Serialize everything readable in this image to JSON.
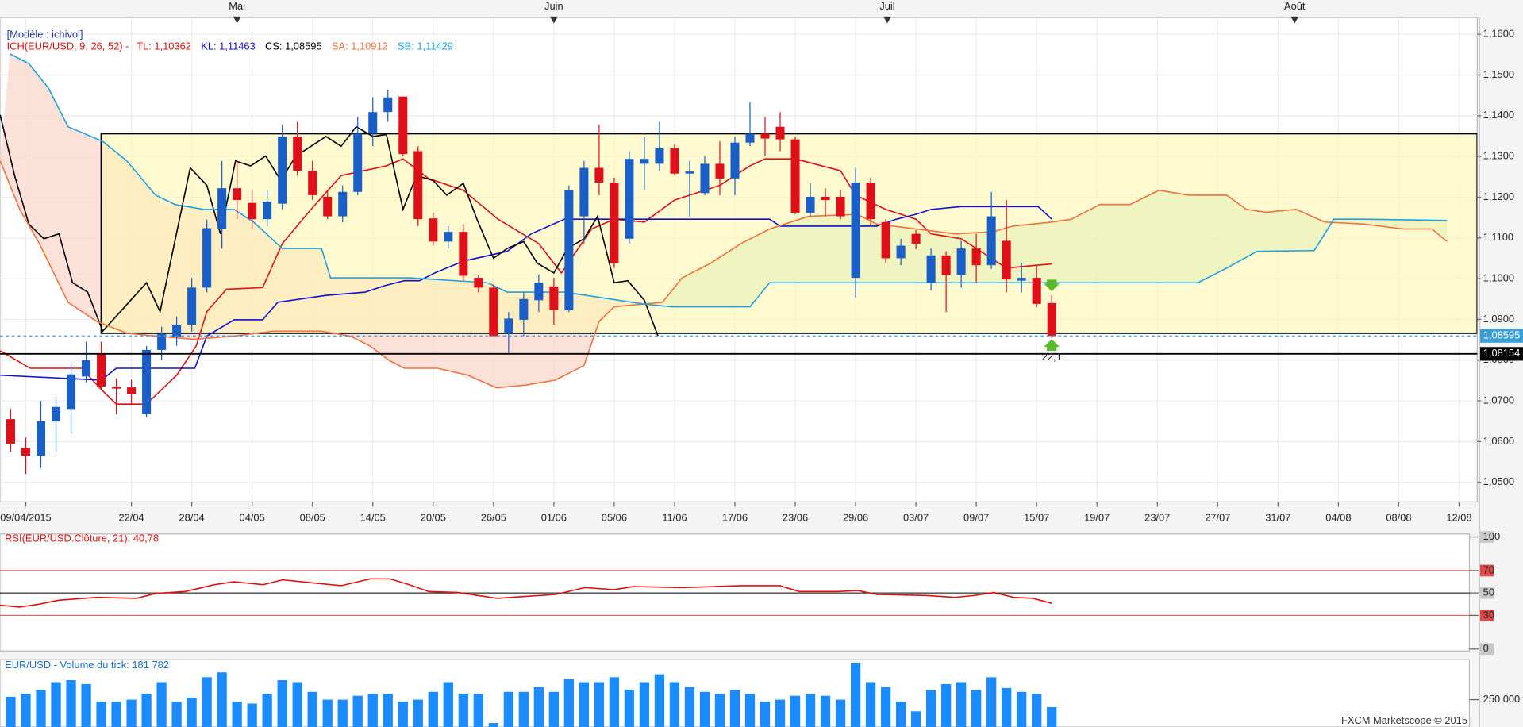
{
  "chart_data": [
    {
      "type": "candlestick",
      "model_label": "[Modèle : ichivol]",
      "indicator_label": "ICH(EUR/USD, 9, 26, 52) -",
      "up_color": "#1a5fc8",
      "down_color": "#e0101a",
      "open": [
        1.0655,
        1.0585,
        1.0565,
        1.065,
        1.068,
        1.076,
        1.0815,
        1.0735,
        1.0733,
        1.0668,
        1.0825,
        1.0858,
        1.0887,
        1.0978,
        1.1122,
        1.1222,
        1.1186,
        1.1146,
        1.1184,
        1.1349,
        1.1265,
        1.1201,
        1.1153,
        1.1213,
        1.1356,
        1.1409,
        1.1447,
        1.1313,
        1.1148,
        1.1091,
        1.1115,
        1.1002,
        1.0978,
        1.0866,
        1.0899,
        1.0947,
        1.0981,
        1.0923,
        1.1153,
        1.1272,
        1.1236,
        1.1098,
        1.1282,
        1.1282,
        1.132,
        1.1258,
        1.121,
        1.1282,
        1.1246,
        1.1334,
        1.1356,
        1.1373,
        1.1342,
        1.1162,
        1.1201,
        1.1201,
        1.1002,
        1.1236,
        1.1139,
        1.105,
        1.111,
        1.099,
        1.1057,
        1.1009,
        1.1074,
        1.1033,
        1.1093,
        1.0995,
        1.1002,
        1.094
      ],
      "high": [
        1.068,
        1.061,
        1.07,
        1.071,
        1.079,
        1.0845,
        1.0845,
        1.0755,
        1.0752,
        1.0835,
        1.0882,
        1.0907,
        1.1002,
        1.1145,
        1.1289,
        1.1289,
        1.1217,
        1.1217,
        1.1378,
        1.1385,
        1.1289,
        1.1217,
        1.1229,
        1.1397,
        1.1445,
        1.1464,
        1.1447,
        1.1325,
        1.1162,
        1.1129,
        1.1134,
        1.101,
        1.0986,
        1.0918,
        1.0966,
        1.101,
        1.1002,
        1.1229,
        1.1289,
        1.1378,
        1.1248,
        1.1313,
        1.1349,
        1.1385,
        1.133,
        1.1289,
        1.1301,
        1.1337,
        1.1349,
        1.1433,
        1.1397,
        1.1409,
        1.1349,
        1.1234,
        1.1222,
        1.1217,
        1.1272,
        1.1248,
        1.1146,
        1.1098,
        1.1119,
        1.1074,
        1.1067,
        1.1093,
        1.111,
        1.1213,
        1.1193,
        1.1038,
        1.1033,
        1.0959
      ],
      "low": [
        1.0575,
        1.052,
        1.0535,
        1.0575,
        1.062,
        1.0745,
        1.0728,
        1.0668,
        1.0692,
        1.066,
        1.08,
        1.0835,
        1.087,
        1.0966,
        1.1074,
        1.1146,
        1.1122,
        1.1129,
        1.117,
        1.1253,
        1.1193,
        1.1146,
        1.1138,
        1.1205,
        1.1325,
        1.1385,
        1.1301,
        1.1129,
        1.1081,
        1.1074,
        1.0995,
        1.0966,
        1.0859,
        1.0818,
        1.0859,
        1.0918,
        1.0887,
        1.0918,
        1.1086,
        1.1205,
        1.1026,
        1.1086,
        1.1217,
        1.1265,
        1.1253,
        1.1153,
        1.1205,
        1.1205,
        1.1205,
        1.1325,
        1.1301,
        1.1313,
        1.1158,
        1.1153,
        1.1153,
        1.1146,
        1.0954,
        1.1129,
        1.1038,
        1.1033,
        1.1072,
        1.0971,
        1.0918,
        1.0978,
        1.099,
        1.1024,
        1.0966,
        1.0966,
        1.093,
        1.0854
      ],
      "close": [
        1.0595,
        1.0565,
        1.065,
        1.0685,
        1.0765,
        1.08,
        1.0735,
        1.073,
        1.0717,
        1.0825,
        1.0865,
        1.0887,
        1.0978,
        1.1124,
        1.1222,
        1.1193,
        1.1146,
        1.1189,
        1.1349,
        1.1265,
        1.1205,
        1.1153,
        1.1213,
        1.1356,
        1.1409,
        1.1445,
        1.1306,
        1.1146,
        1.1091,
        1.1115,
        1.1007,
        1.0978,
        1.0859,
        1.0902,
        1.095,
        1.099,
        1.0923,
        1.1217,
        1.1272,
        1.1236,
        1.1038,
        1.1294,
        1.1294,
        1.132,
        1.1258,
        1.1263,
        1.1282,
        1.1246,
        1.1334,
        1.1356,
        1.1344,
        1.1342,
        1.1162,
        1.1201,
        1.1193,
        1.1153,
        1.1236,
        1.1146,
        1.105,
        1.1081,
        1.1086,
        1.1057,
        1.1009,
        1.1074,
        1.1033,
        1.1153,
        1.0998,
        1.1002,
        1.0938,
        1.08595
      ],
      "series": [
        {
          "name": "TL: 1,10362",
          "color": "#e01010",
          "x": [
            -0.7,
            1.3,
            4.7,
            6,
            7,
            9,
            11,
            12.3,
            13,
            14.3,
            16.7,
            18,
            19.9,
            21.9,
            24.9,
            26,
            27.7,
            30,
            32.3,
            35,
            36.5,
            38.5,
            40,
            42,
            44,
            47,
            49,
            50,
            52,
            55,
            56,
            58,
            60,
            61,
            63,
            64,
            66,
            68,
            69
          ],
          "values": [
            1.0823,
            1.078,
            1.078,
            1.0728,
            1.0692,
            1.0692,
            1.0763,
            1.0835,
            1.0919,
            1.0974,
            1.0978,
            1.1086,
            1.117,
            1.1253,
            1.1277,
            1.1294,
            1.1246,
            1.1217,
            1.1146,
            1.1086,
            1.1014,
            1.1122,
            1.1146,
            1.1139,
            1.1193,
            1.1229,
            1.1277,
            1.1294,
            1.1294,
            1.1265,
            1.1205,
            1.117,
            1.1146,
            1.111,
            1.1098,
            1.1074,
            1.1026,
            1.1033,
            1.10362
          ]
        },
        {
          "name": "KL: 1,11463",
          "color": "#1010d0",
          "x": [
            -0.7,
            6,
            7,
            12.2,
            13,
            14.8,
            16.7,
            17.7,
            20.9,
            23.5,
            24.8,
            26.1,
            27.1,
            28.1,
            30,
            32.9,
            34.5,
            36.7,
            50.3,
            51,
            57.4,
            58.7,
            60,
            61,
            63,
            68.1,
            69
          ],
          "values": [
            1.0763,
            1.0751,
            1.078,
            1.078,
            1.0859,
            1.0899,
            1.0899,
            1.0942,
            1.0959,
            1.0967,
            1.0983,
            1.0995,
            1.0995,
            1.1014,
            1.1043,
            1.1067,
            1.111,
            1.1146,
            1.1146,
            1.1129,
            1.1129,
            1.1146,
            1.1158,
            1.117,
            1.1177,
            1.1177,
            1.11463
          ]
        },
        {
          "name": "CS: 1,08595",
          "color": "#000000",
          "x": [
            -0.7,
            0.26,
            1.2,
            2.2,
            3.2,
            4.1,
            5.1,
            6.1,
            9,
            9.9,
            11.9,
            13,
            13.9,
            14.9,
            15.9,
            16.9,
            17.9,
            18.9,
            19.9,
            20.9,
            21.9,
            22.9,
            24,
            24.9,
            26,
            26.9,
            28,
            28.9,
            30,
            30.9,
            32,
            32.9,
            34,
            34.9,
            36,
            36.9,
            38,
            38.9,
            40,
            40.9,
            42,
            42.9
          ],
          "values": [
            1.1402,
            1.1253,
            1.1134,
            1.1098,
            1.111,
            1.099,
            1.0967,
            1.0871,
            1.099,
            1.0919,
            1.1272,
            1.1229,
            1.111,
            1.1289,
            1.1277,
            1.1301,
            1.1241,
            1.1301,
            1.1325,
            1.1349,
            1.1325,
            1.1373,
            1.1349,
            1.1354,
            1.117,
            1.1253,
            1.1241,
            1.1205,
            1.1234,
            1.1146,
            1.105,
            1.1074,
            1.1091,
            1.1038,
            1.1014,
            1.1074,
            1.1098,
            1.1153,
            1.099,
            1.0995,
            1.0947,
            1.08595
          ]
        },
        {
          "name": "SA: 1,10912",
          "color": "#f07040",
          "x": [
            -0.7,
            0.6,
            1.9,
            3.8,
            5.7,
            7.7,
            9.6,
            12.2,
            14.8,
            17.4,
            20.6,
            22.5,
            23.8,
            25.1,
            26.1,
            28.3,
            30.3,
            32.2,
            34.2,
            36.1,
            38,
            39,
            40,
            43.2,
            44.5,
            46.4,
            48.4,
            50.3,
            52.9,
            56.1,
            57.4,
            60,
            62.6,
            65.1,
            66.4,
            69,
            70.3,
            72.2,
            74.2,
            76.1,
            78.1,
            80.6,
            81.9,
            83.2,
            85.2,
            87.1,
            89.7,
            92.3,
            94.2,
            95.2
          ],
          "values": [
            1.1289,
            1.117,
            1.1086,
            1.0942,
            1.0895,
            1.0866,
            1.0859,
            1.0851,
            1.0859,
            1.0871,
            1.0871,
            1.0859,
            1.0835,
            1.0799,
            1.078,
            1.078,
            1.0763,
            1.0732,
            1.0739,
            1.0751,
            1.0787,
            1.0895,
            1.0931,
            1.0942,
            1.1002,
            1.1038,
            1.1086,
            1.1122,
            1.1153,
            1.1158,
            1.1134,
            1.1122,
            1.111,
            1.1115,
            1.1129,
            1.1139,
            1.1146,
            1.1182,
            1.1182,
            1.1217,
            1.1205,
            1.1205,
            1.117,
            1.1163,
            1.117,
            1.1139,
            1.1134,
            1.1122,
            1.1122,
            1.10912
          ]
        },
        {
          "name": "SB: 1,11429",
          "color": "#20a0e0",
          "x": [
            -0.06,
            1.2,
            2.5,
            3.8,
            6.1,
            7.7,
            9.6,
            10.9,
            12.8,
            14.8,
            16.1,
            18,
            20.6,
            21.2,
            26.4,
            31.6,
            32.9,
            36.7,
            41.9,
            43.8,
            49,
            50.3,
            58.7,
            70.3,
            78.7,
            80.6,
            82.6,
            86.4,
            87.7,
            89.7,
            95.2
          ],
          "values": [
            1.1552,
            1.1528,
            1.1468,
            1.1373,
            1.1337,
            1.1289,
            1.1205,
            1.1182,
            1.117,
            1.117,
            1.1139,
            1.1074,
            1.1074,
            1.1002,
            1.1002,
            1.099,
            1.0967,
            1.0967,
            1.0938,
            1.0931,
            1.0931,
            1.099,
            1.099,
            1.099,
            1.099,
            1.1026,
            1.1067,
            1.1069,
            1.1146,
            1.1146,
            1.11429
          ]
        }
      ],
      "box": {
        "x": [
          6,
          97.2
        ],
        "y": [
          1.0866,
          1.1356
        ],
        "color": "#fff6b0"
      },
      "hlines": [
        {
          "value": 1.08595,
          "label": "1,08595",
          "color": "#3aa0d8",
          "dashed": true
        },
        {
          "value": 1.08154,
          "label": "1,08154",
          "color": "#000000",
          "dashed": false
        }
      ],
      "signal_label": "22,1",
      "xlim": [
        -0.71,
        97.2
      ],
      "ylim": [
        1.0452,
        1.1641
      ],
      "yticks": [
        {
          "value": 1.16,
          "label": "1,1600"
        },
        {
          "value": 1.15,
          "label": "1,1500"
        },
        {
          "value": 1.14,
          "label": "1,1400"
        },
        {
          "value": 1.13,
          "label": "1,1300"
        },
        {
          "value": 1.12,
          "label": "1,1200"
        },
        {
          "value": 1.11,
          "label": "1,1100"
        },
        {
          "value": 1.1,
          "label": "1,1000"
        },
        {
          "value": 1.09,
          "label": "1,0900"
        },
        {
          "value": 1.08,
          "label": "1,0800"
        },
        {
          "value": 1.07,
          "label": "1,0700"
        },
        {
          "value": 1.06,
          "label": "1,0600"
        },
        {
          "value": 1.05,
          "label": "1,0500"
        }
      ],
      "xticks": [
        {
          "value": 1,
          "label": "09/04/2015"
        },
        {
          "value": 8,
          "label": "22/04"
        },
        {
          "value": 12,
          "label": "28/04"
        },
        {
          "value": 16,
          "label": "04/05"
        },
        {
          "value": 20,
          "label": "08/05"
        },
        {
          "value": 24,
          "label": "14/05"
        },
        {
          "value": 28,
          "label": "20/05"
        },
        {
          "value": 32,
          "label": "26/05"
        },
        {
          "value": 36,
          "label": "01/06"
        },
        {
          "value": 40,
          "label": "05/06"
        },
        {
          "value": 44,
          "label": "11/06"
        },
        {
          "value": 48,
          "label": "17/06"
        },
        {
          "value": 52,
          "label": "23/06"
        },
        {
          "value": 56,
          "label": "29/06"
        },
        {
          "value": 60,
          "label": "03/07"
        },
        {
          "value": 64,
          "label": "09/07"
        },
        {
          "value": 68,
          "label": "15/07"
        },
        {
          "value": 72,
          "label": "19/07"
        },
        {
          "value": 76,
          "label": "23/07"
        },
        {
          "value": 80,
          "label": "27/07"
        },
        {
          "value": 84,
          "label": "31/07"
        },
        {
          "value": 88,
          "label": "04/08"
        },
        {
          "value": 92,
          "label": "08/08"
        },
        {
          "value": 96,
          "label": "12/08"
        }
      ],
      "month_ticks": [
        {
          "value": 15,
          "label": "Mai"
        },
        {
          "value": 36,
          "label": "Juin"
        },
        {
          "value": 58.1,
          "label": "Juil"
        },
        {
          "value": 85.1,
          "label": "Août"
        }
      ],
      "grid": true
    },
    {
      "type": "line",
      "title": "RSI(EUR/USD.Clôture, 21): 40,78",
      "color": "#e01010",
      "x": [
        -0.71,
        0.58,
        1.87,
        3.17,
        5.75,
        8.33,
        9.63,
        11.56,
        13.5,
        14.79,
        16.73,
        18.02,
        19.96,
        21.9,
        23.84,
        25.13,
        26.42,
        27.71,
        29.65,
        32.24,
        34.17,
        36.11,
        38.05,
        39.99,
        41.28,
        44.51,
        48.39,
        50.97,
        52.26,
        54.84,
        56.14,
        57.43,
        60.66,
        62.6,
        63.89,
        65.18,
        66.47,
        67.76,
        69
      ],
      "values": [
        39.1,
        37.4,
        40,
        43.5,
        46.1,
        45.2,
        49.6,
        51.3,
        57.4,
        60,
        57.4,
        61.7,
        59.1,
        56.5,
        62.6,
        62.6,
        57.4,
        51.3,
        50.4,
        45.2,
        47,
        48.7,
        54.8,
        53,
        55.7,
        54.8,
        56.5,
        56.5,
        51.3,
        51.3,
        52.2,
        48.7,
        47.8,
        46.1,
        47.8,
        50.4,
        46.1,
        45.2,
        40.78
      ],
      "levels": [
        {
          "value": 70,
          "color": "#e04848"
        },
        {
          "value": 50,
          "color": "#000000"
        },
        {
          "value": 30,
          "color": "#e04848"
        }
      ],
      "xlim": [
        -0.71,
        97.2
      ],
      "ylim": [
        -1.7,
        102.6
      ],
      "yticks": [
        100,
        70,
        50,
        30,
        0
      ]
    },
    {
      "type": "bar",
      "title": "EUR/USD - Volume du tick: 181 782",
      "color": "#1a8cff",
      "values": [
        276800,
        303600,
        339300,
        410700,
        428600,
        392900,
        232200,
        232200,
        250000,
        303600,
        410700,
        232200,
        267900,
        455400,
        500000,
        232200,
        214300,
        303600,
        428600,
        410700,
        321400,
        250000,
        250000,
        285700,
        303600,
        303600,
        232200,
        250000,
        321400,
        410700,
        303600,
        303600,
        35700,
        321400,
        321400,
        366100,
        321400,
        437500,
        410700,
        410700,
        455400,
        339300,
        410700,
        482100,
        410700,
        366100,
        321400,
        303600,
        339300,
        303600,
        232200,
        250000,
        285700,
        303600,
        285700,
        250000,
        589300,
        410700,
        366100,
        232200,
        142900,
        339300,
        392900,
        410700,
        339300,
        455400,
        357100,
        321400,
        303600,
        181782
      ],
      "xlim": [
        -0.71,
        97.2
      ],
      "ylim": [
        0,
        616100
      ],
      "yticks": [
        {
          "value": 250000,
          "label": "250 000"
        }
      ],
      "footer": "FXCM Marketscope © 2015"
    }
  ]
}
